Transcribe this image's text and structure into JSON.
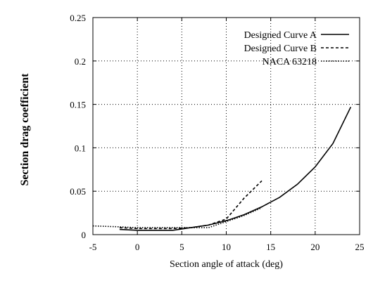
{
  "chart_data": {
    "type": "line",
    "title": "",
    "xlabel": "Section angle of attack (deg)",
    "ylabel": "Section drag coefficient",
    "xlim": [
      -5,
      25
    ],
    "ylim": [
      0,
      0.25
    ],
    "x_ticks": [
      "-5",
      "0",
      "5",
      "10",
      "15",
      "20",
      "25"
    ],
    "y_ticks": [
      "0",
      "0.05",
      "0.1",
      "0.15",
      "0.2",
      "0.25"
    ],
    "grid": true,
    "legend_position": "top-right",
    "series": [
      {
        "name": "Designed Curve A",
        "style": "solid",
        "color": "#000000",
        "x": [
          -2,
          0,
          2,
          4,
          6,
          8,
          10,
          12,
          14,
          16,
          18,
          20,
          22,
          24
        ],
        "y": [
          0.006,
          0.005,
          0.005,
          0.005,
          0.008,
          0.011,
          0.016,
          0.023,
          0.032,
          0.043,
          0.058,
          0.078,
          0.105,
          0.147
        ]
      },
      {
        "name": "Designed Curve B",
        "style": "dashed",
        "color": "#000000",
        "x": [
          -2,
          0,
          2,
          4,
          6,
          8,
          10,
          12,
          14
        ],
        "y": [
          0.008,
          0.007,
          0.007,
          0.007,
          0.008,
          0.011,
          0.018,
          0.042,
          0.062
        ]
      },
      {
        "name": "NACA 63218",
        "style": "dotted",
        "color": "#000000",
        "x": [
          -5,
          -2,
          0,
          2,
          4,
          6,
          8,
          10,
          12,
          14
        ],
        "y": [
          0.01,
          0.009,
          0.008,
          0.008,
          0.008,
          0.008,
          0.008,
          0.015,
          0.022,
          0.031
        ]
      }
    ]
  }
}
